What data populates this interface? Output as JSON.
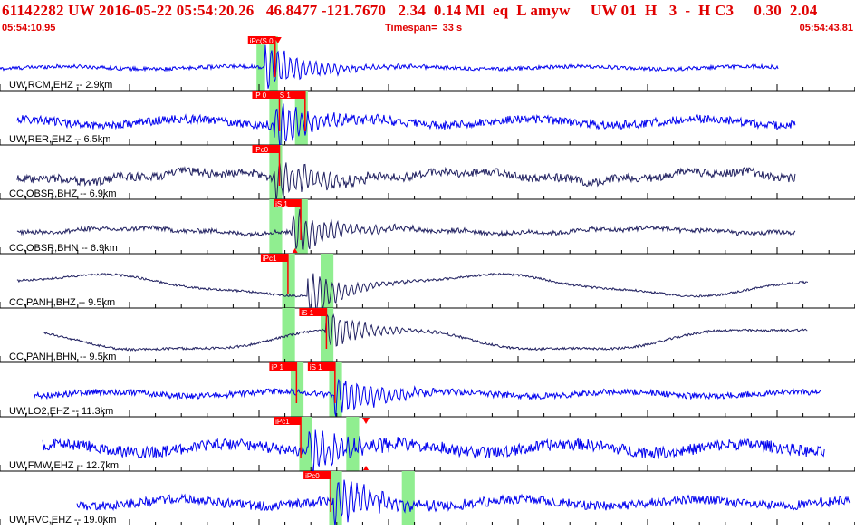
{
  "header": {
    "event_line": "61142282 UW 2016-05-22 05:54:20.26   46.8477 -121.7670   2.34  0.14 Ml  eq  L amyw     UW 01  H   3  -  H C3     0.30  2.04",
    "start_time": "05:54:10.95",
    "timespan": "Timespan=  33 s",
    "end_time": "05:54:43.81"
  },
  "colors": {
    "header_text": "#e00000",
    "trace_blue": "#0000ee",
    "trace_dark": "#202060",
    "pick_red": "#ff0000",
    "window_green": "#90ee90",
    "grid": "#000000"
  },
  "channels": [
    {
      "label": "UW,RCM,EHZ -- 2.9km",
      "color": "blue",
      "start": 0.0,
      "end": 0.91,
      "arrival": 0.31,
      "amp": 0.1,
      "wave": "noise",
      "picks": [
        {
          "label": "iPc(S 0",
          "pos": 0.29
        }
      ],
      "windows": [
        [
          0.3,
          0.31
        ],
        [
          0.315,
          0.325
        ]
      ],
      "markers": [
        {
          "pos": 0.325,
          "type": "down"
        }
      ]
    },
    {
      "label": "UW,RER,EHZ -- 6.5km",
      "color": "blue",
      "start": 0.02,
      "end": 0.93,
      "arrival": 0.32,
      "amp": 0.22,
      "wave": "noise",
      "picks": [
        {
          "label": "iP 0",
          "pos": 0.295
        },
        {
          "label": "S 1",
          "pos": 0.325
        }
      ],
      "windows": [
        [
          0.315,
          0.33
        ],
        [
          0.345,
          0.36
        ]
      ],
      "markers": []
    },
    {
      "label": "CC,OBSR,BHZ -- 6.9km",
      "color": "dark",
      "start": 0.02,
      "end": 0.93,
      "arrival": 0.32,
      "amp": 0.22,
      "wave": "slow",
      "picks": [
        {
          "label": "iPc0",
          "pos": 0.295
        }
      ],
      "windows": [
        [
          0.315,
          0.33
        ]
      ],
      "markers": []
    },
    {
      "label": "CC,OBSR,BHN -- 6.9km",
      "color": "dark",
      "start": 0.02,
      "end": 0.93,
      "arrival": 0.34,
      "amp": 0.12,
      "wave": "slow",
      "picks": [
        {
          "label": "iS 1",
          "pos": 0.32
        }
      ],
      "windows": [
        [
          0.315,
          0.33
        ],
        [
          0.345,
          0.36
        ]
      ],
      "markers": [
        {
          "pos": 0.345,
          "type": "down"
        },
        {
          "pos": 0.345,
          "type": "up"
        }
      ]
    },
    {
      "label": "CC,PANH,BHZ -- 9.5km",
      "color": "dark",
      "start": 0.02,
      "end": 0.945,
      "arrival": 0.36,
      "amp": 0.2,
      "wave": "long",
      "picks": [
        {
          "label": "iPc1",
          "pos": 0.305
        }
      ],
      "windows": [
        [
          0.33,
          0.345
        ],
        [
          0.375,
          0.39
        ]
      ],
      "markers": []
    },
    {
      "label": "CC,PANH,BHN -- 9.5km",
      "color": "dark",
      "start": 0.05,
      "end": 0.945,
      "arrival": 0.38,
      "amp": 0.22,
      "wave": "long",
      "picks": [
        {
          "label": "iS 1",
          "pos": 0.35
        }
      ],
      "windows": [
        [
          0.33,
          0.345
        ],
        [
          0.375,
          0.39
        ]
      ],
      "markers": []
    },
    {
      "label": "UW,LO2,EHZ -- 11.3km",
      "color": "blue",
      "start": 0.04,
      "end": 0.96,
      "arrival": 0.39,
      "amp": 0.16,
      "wave": "noise",
      "picks": [
        {
          "label": "iP 1",
          "pos": 0.315
        },
        {
          "label": "iS 1",
          "pos": 0.36
        }
      ],
      "windows": [
        [
          0.34,
          0.355
        ],
        [
          0.385,
          0.4
        ]
      ],
      "markers": []
    },
    {
      "label": "UW,FMW,EHZ -- 12.7km",
      "color": "blue",
      "start": 0.05,
      "end": 0.965,
      "arrival": 0.36,
      "amp": 0.3,
      "wave": "noise",
      "picks": [
        {
          "label": "iPc1",
          "pos": 0.32
        }
      ],
      "windows": [
        [
          0.35,
          0.365
        ],
        [
          0.405,
          0.42
        ]
      ],
      "markers": [
        {
          "pos": 0.428,
          "type": "down"
        },
        {
          "pos": 0.428,
          "type": "up"
        }
      ]
    },
    {
      "label": "UW,RVC,EHZ -- 19.0km",
      "color": "blue",
      "start": 0.09,
      "end": 0.995,
      "arrival": 0.39,
      "amp": 0.24,
      "wave": "noise",
      "picks": [
        {
          "label": "iPc0",
          "pos": 0.355
        }
      ],
      "windows": [
        [
          0.385,
          0.4
        ],
        [
          0.47,
          0.485
        ]
      ],
      "markers": []
    }
  ]
}
